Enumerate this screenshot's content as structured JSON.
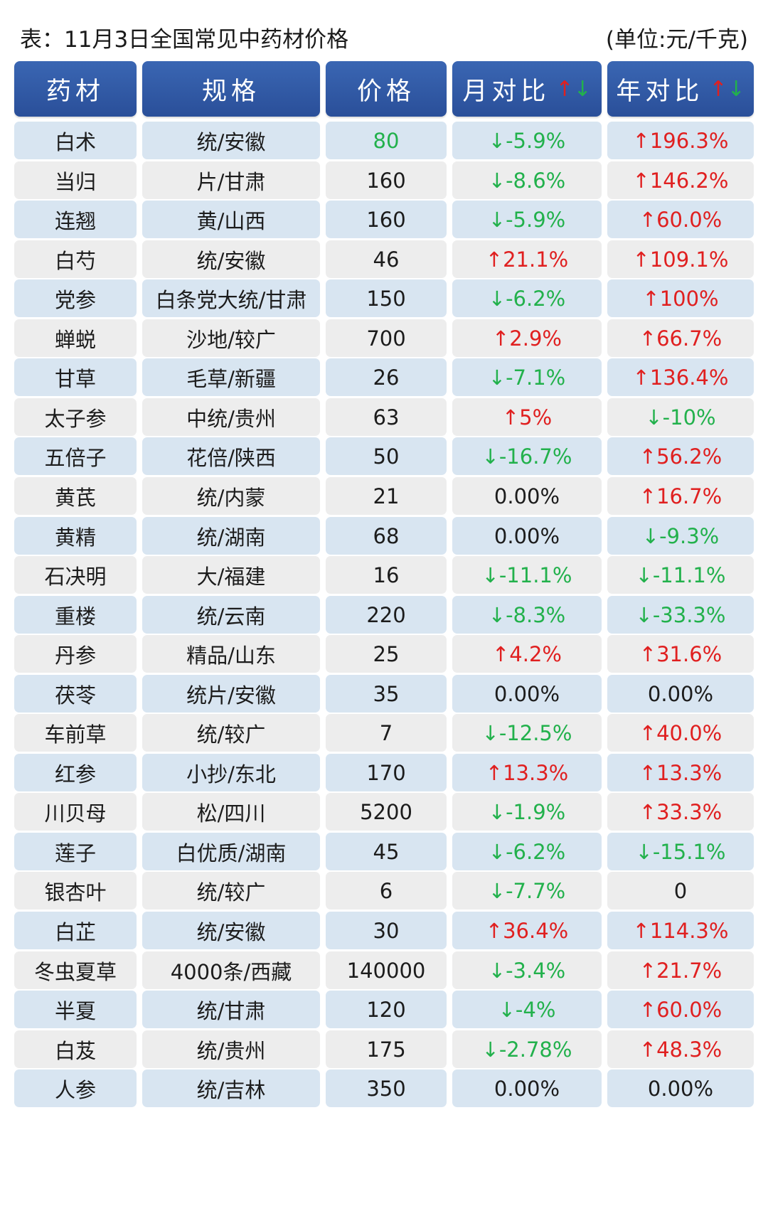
{
  "title": "表：11月3日全国常见中药材价格",
  "unit": "(单位:元/千克)",
  "headers": {
    "herb": "药材",
    "spec": "规格",
    "price": "价格",
    "month": "月对比",
    "year": "年对比",
    "arrow_up": "↑",
    "arrow_down": "↓"
  },
  "colors": {
    "header": "#2f5aa6",
    "up": "#e02020",
    "down": "#22b14c",
    "row_blue": "#d8e5f1",
    "row_gray": "#ededed"
  },
  "rows": [
    {
      "herb": "白术",
      "spec": "统/安徽",
      "price": "80",
      "price_color": "down",
      "month": "↓-5.9%",
      "month_dir": "down",
      "year": "↑196.3%",
      "year_dir": "up"
    },
    {
      "herb": "当归",
      "spec": "片/甘肃",
      "price": "160",
      "month": "↓-8.6%",
      "month_dir": "down",
      "year": "↑146.2%",
      "year_dir": "up"
    },
    {
      "herb": "连翘",
      "spec": "黄/山西",
      "price": "160",
      "month": "↓-5.9%",
      "month_dir": "down",
      "year": "↑60.0%",
      "year_dir": "up"
    },
    {
      "herb": "白芍",
      "spec": "统/安徽",
      "price": "46",
      "month": "↑21.1%",
      "month_dir": "up",
      "year": "↑109.1%",
      "year_dir": "up"
    },
    {
      "herb": "党参",
      "spec": "白条党大统/甘肃",
      "price": "150",
      "month": "↓-6.2%",
      "month_dir": "down",
      "year": "↑100%",
      "year_dir": "up"
    },
    {
      "herb": "蝉蜕",
      "spec": "沙地/较广",
      "price": "700",
      "month": "↑2.9%",
      "month_dir": "up",
      "year": "↑66.7%",
      "year_dir": "up"
    },
    {
      "herb": "甘草",
      "spec": "毛草/新疆",
      "price": "26",
      "month": "↓-7.1%",
      "month_dir": "down",
      "year": "↑136.4%",
      "year_dir": "up"
    },
    {
      "herb": "太子参",
      "spec": "中统/贵州",
      "price": "63",
      "month": "↑5%",
      "month_dir": "up",
      "year": "↓-10%",
      "year_dir": "down"
    },
    {
      "herb": "五倍子",
      "spec": "花倍/陕西",
      "price": "50",
      "month": "↓-16.7%",
      "month_dir": "down",
      "year": "↑56.2%",
      "year_dir": "up"
    },
    {
      "herb": "黄芪",
      "spec": "统/内蒙",
      "price": "21",
      "month": "0.00%",
      "month_dir": "flat",
      "year": "↑16.7%",
      "year_dir": "up"
    },
    {
      "herb": "黄精",
      "spec": "统/湖南",
      "price": "68",
      "month": "0.00%",
      "month_dir": "flat",
      "year": "↓-9.3%",
      "year_dir": "down"
    },
    {
      "herb": "石决明",
      "spec": "大/福建",
      "price": "16",
      "month": "↓-11.1%",
      "month_dir": "down",
      "year": "↓-11.1%",
      "year_dir": "down"
    },
    {
      "herb": "重楼",
      "spec": "统/云南",
      "price": "220",
      "month": "↓-8.3%",
      "month_dir": "down",
      "year": "↓-33.3%",
      "year_dir": "down"
    },
    {
      "herb": "丹参",
      "spec": "精品/山东",
      "price": "25",
      "month": "↑4.2%",
      "month_dir": "up",
      "year": "↑31.6%",
      "year_dir": "up"
    },
    {
      "herb": "茯苓",
      "spec": "统片/安徽",
      "price": "35",
      "month": "0.00%",
      "month_dir": "flat",
      "year": "0.00%",
      "year_dir": "flat"
    },
    {
      "herb": "车前草",
      "spec": "统/较广",
      "price": "7",
      "month": "↓-12.5%",
      "month_dir": "down",
      "year": "↑40.0%",
      "year_dir": "up"
    },
    {
      "herb": "红参",
      "spec": "小抄/东北",
      "price": "170",
      "month": "↑13.3%",
      "month_dir": "up",
      "year": "↑13.3%",
      "year_dir": "up"
    },
    {
      "herb": "川贝母",
      "spec": "松/四川",
      "price": "5200",
      "month": "↓-1.9%",
      "month_dir": "down",
      "year": "↑33.3%",
      "year_dir": "up"
    },
    {
      "herb": "莲子",
      "spec": "白优质/湖南",
      "price": "45",
      "month": "↓-6.2%",
      "month_dir": "down",
      "year": "↓-15.1%",
      "year_dir": "down"
    },
    {
      "herb": "银杏叶",
      "spec": "统/较广",
      "price": "6",
      "month": "↓-7.7%",
      "month_dir": "down",
      "year": "0",
      "year_dir": "flat"
    },
    {
      "herb": "白芷",
      "spec": "统/安徽",
      "price": "30",
      "month": "↑36.4%",
      "month_dir": "up",
      "year": "↑114.3%",
      "year_dir": "up"
    },
    {
      "herb": "冬虫夏草",
      "spec": "4000条/西藏",
      "price": "140000",
      "month": "↓-3.4%",
      "month_dir": "down",
      "year": "↑21.7%",
      "year_dir": "up"
    },
    {
      "herb": "半夏",
      "spec": "统/甘肃",
      "price": "120",
      "month": "↓-4%",
      "month_dir": "down",
      "year": "↑60.0%",
      "year_dir": "up"
    },
    {
      "herb": "白芨",
      "spec": "统/贵州",
      "price": "175",
      "month": "↓-2.78%",
      "month_dir": "down",
      "year": "↑48.3%",
      "year_dir": "up"
    },
    {
      "herb": "人参",
      "spec": "统/吉林",
      "price": "350",
      "month": "0.00%",
      "month_dir": "flat",
      "year": "0.00%",
      "year_dir": "flat"
    }
  ]
}
